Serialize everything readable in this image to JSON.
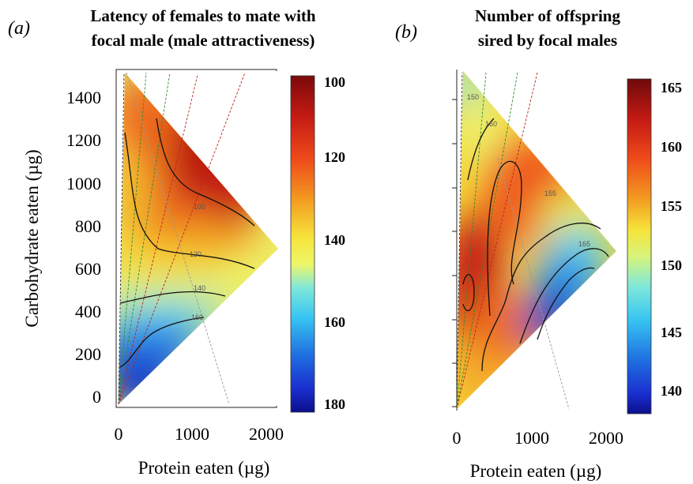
{
  "chart_data": [
    {
      "type": "heatmap",
      "panel_tag": "(a)",
      "title": [
        "Latency of females to mate with",
        "focal male (male attractiveness)"
      ],
      "xlabel": "Protein eaten (µg)",
      "ylabel": "Carbohydrate eaten (µg)",
      "xlim": [
        0,
        2100
      ],
      "ylim": [
        -50,
        1550
      ],
      "xticks": [
        "0",
        "1000",
        "2000"
      ],
      "yticks": [
        "0",
        "200",
        "400",
        "600",
        "800",
        "1000",
        "1200",
        "1400"
      ],
      "colorbar": {
        "ticks": [
          "100",
          "120",
          "140",
          "160",
          "180"
        ],
        "range": [
          100,
          180
        ],
        "reversed": true
      },
      "contour_labels": [
        "100",
        "120",
        "140",
        "160"
      ],
      "grid": false
    },
    {
      "type": "heatmap",
      "panel_tag": "(b)",
      "title": [
        "Number of offspring",
        "sired by focal males"
      ],
      "xlabel": "Protein eaten (µg)",
      "ylabel": "",
      "xlim": [
        0,
        2100
      ],
      "ylim": [
        -50,
        1550
      ],
      "xticks": [
        "0",
        "1000",
        "2000"
      ],
      "yticks": [],
      "colorbar": {
        "ticks": [
          "165",
          "160",
          "155",
          "150",
          "145",
          "140"
        ],
        "range": [
          138,
          166
        ],
        "reversed": false
      },
      "contour_labels": [
        "150",
        "155",
        "160",
        "165"
      ],
      "grid": false
    }
  ]
}
